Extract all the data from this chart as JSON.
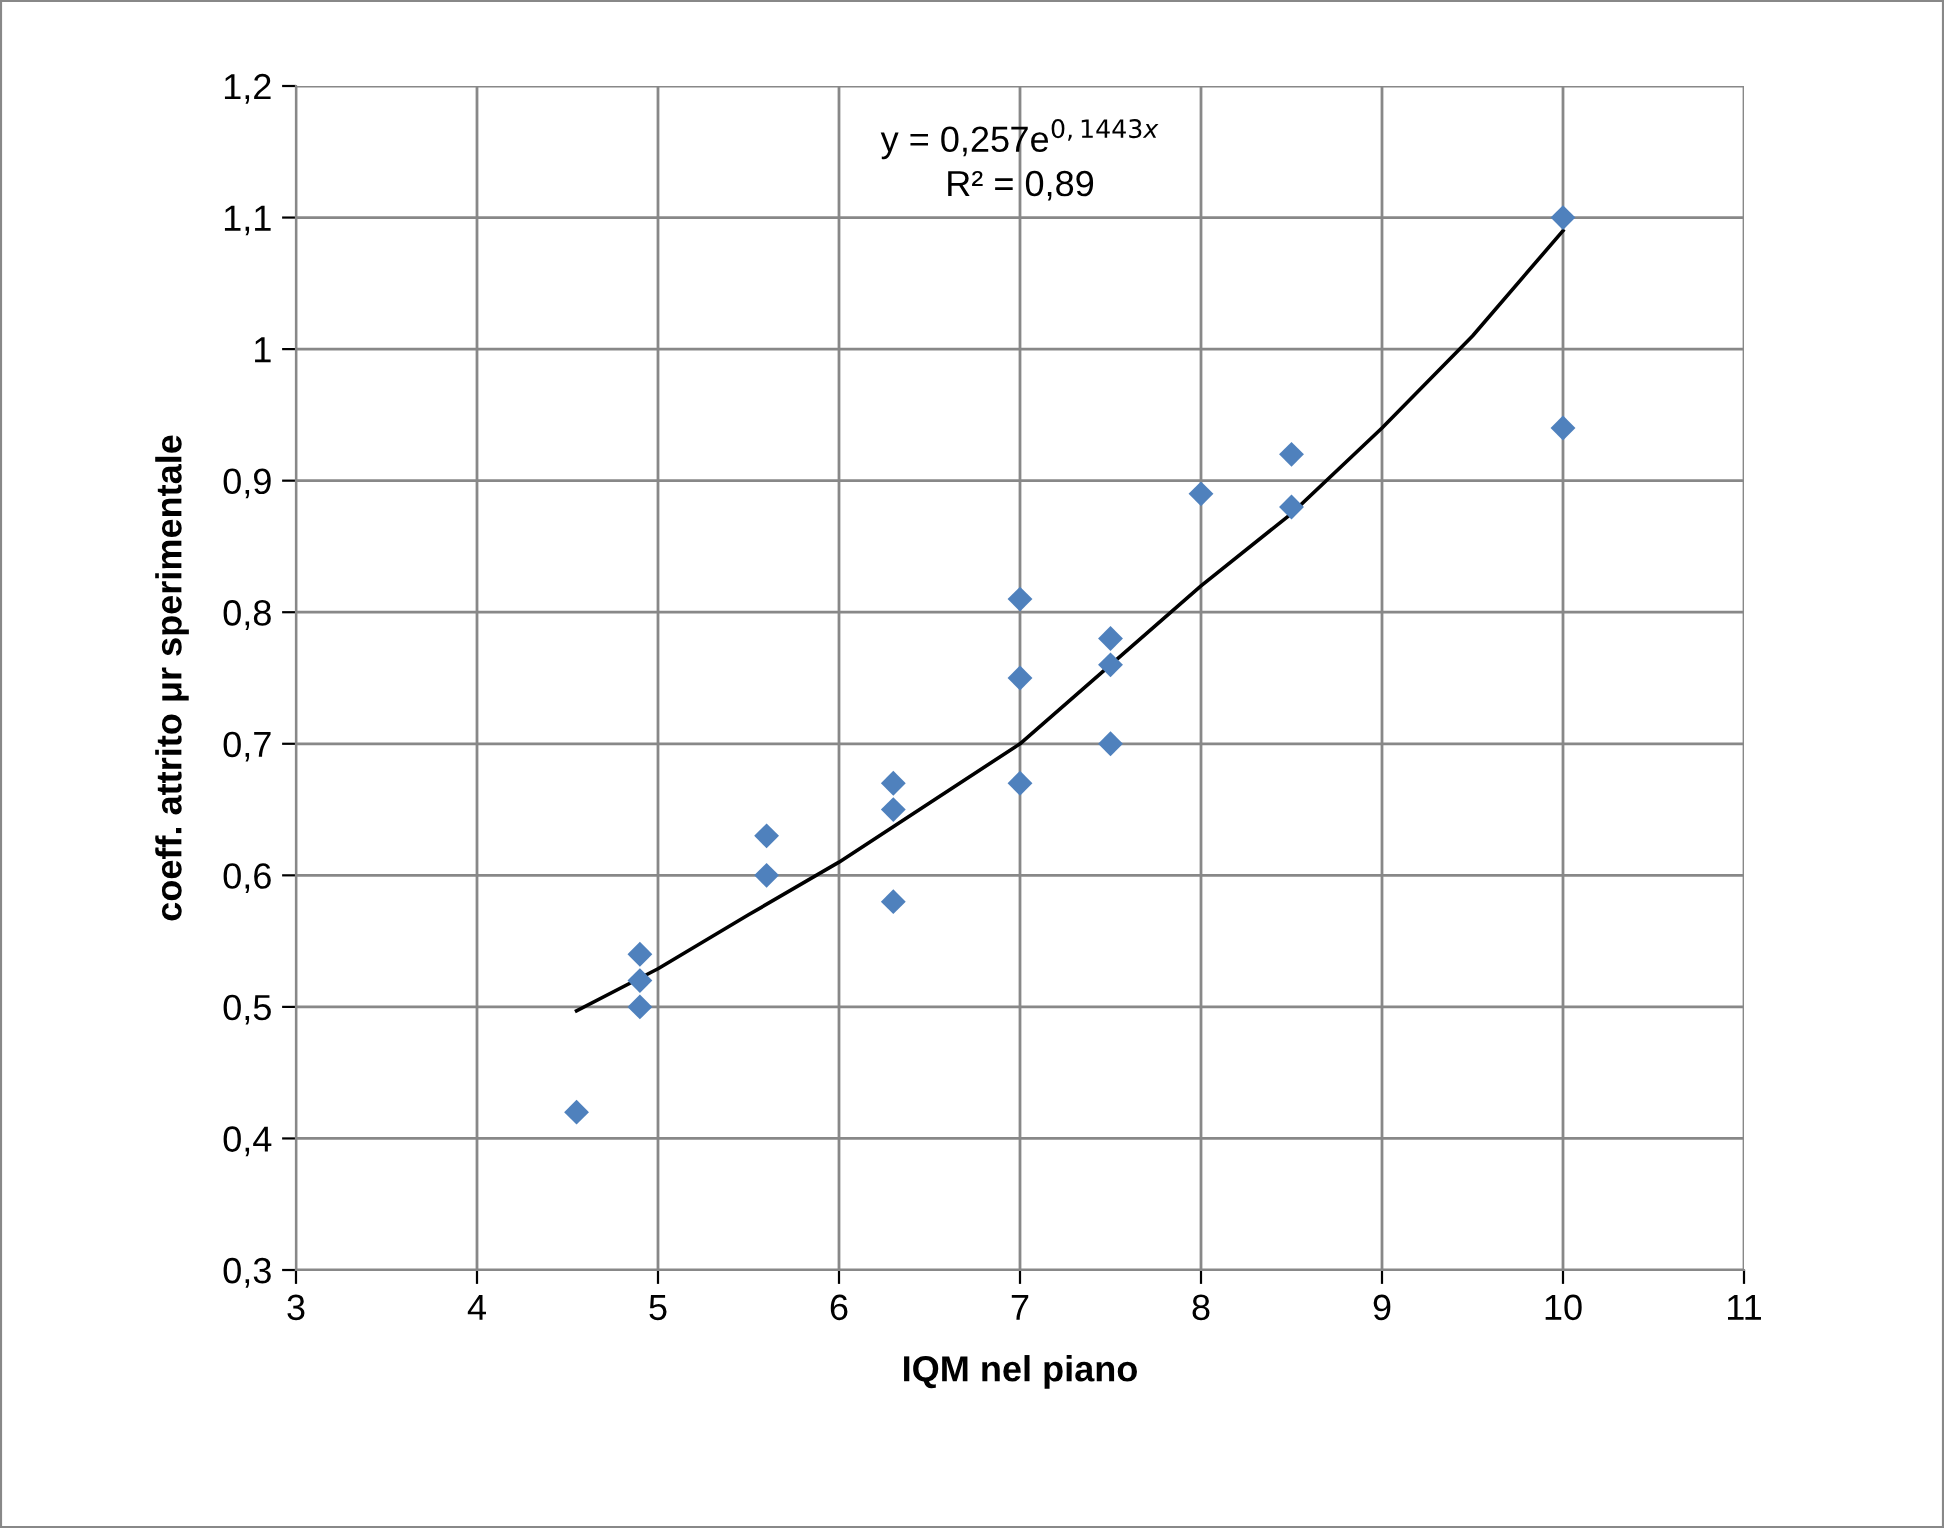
{
  "chart_data": {
    "type": "scatter",
    "xlabel": "IQM nel piano",
    "ylabel": "coeff. attrito μr sperimentale",
    "annotations": [
      "y = 0,257e$^{0,1443x}$",
      "R² = 0,89"
    ],
    "series": [
      {
        "color": "#4f81bd",
        "marker": "diamond",
        "x": [
          4.55,
          4.9,
          4.9,
          4.9,
          5.6,
          5.6,
          6.3,
          6.3,
          6.3,
          7.0,
          7.0,
          7.0,
          7.5,
          7.5,
          7.5,
          8.0,
          8.5,
          8.5,
          10,
          10
        ],
        "values": [
          0.42,
          0.54,
          0.52,
          0.5,
          0.63,
          0.6,
          0.67,
          0.65,
          0.58,
          0.81,
          0.75,
          0.67,
          0.78,
          0.76,
          0.7,
          0.89,
          0.92,
          0.88,
          1.1,
          0.94
        ]
      },
      {
        "type": "line",
        "color": "#000000",
        "marker": "none",
        "line_style": "solid",
        "x": [
          4.55,
          5,
          5.5,
          6,
          6.5,
          7,
          7.5,
          8,
          8.5,
          9,
          9.5,
          10
        ],
        "values": [
          0.497,
          0.529,
          0.57,
          0.61,
          0.655,
          0.7,
          0.76,
          0.82,
          0.875,
          0.94,
          1.01,
          1.09
        ]
      }
    ],
    "xlim": [
      3,
      11
    ],
    "xticks": [
      3,
      4,
      5,
      6,
      7,
      8,
      9,
      10,
      11
    ],
    "ylim": [
      0.3,
      1.2
    ],
    "yticks": [
      {
        "value": 0.3,
        "label": "0,3"
      },
      {
        "value": 0.4,
        "label": "0,4"
      },
      {
        "value": 0.5,
        "label": "0,5"
      },
      {
        "value": 0.6,
        "label": "0,6"
      },
      {
        "value": 0.7,
        "label": "0,7"
      },
      {
        "value": 0.8,
        "label": "0,8"
      },
      {
        "value": 0.9,
        "label": "0,9"
      },
      {
        "value": 1,
        "label": "1"
      },
      {
        "value": 1.1,
        "label": "1,1"
      },
      {
        "value": 1.2,
        "label": "1,2"
      }
    ],
    "grid": true
  }
}
